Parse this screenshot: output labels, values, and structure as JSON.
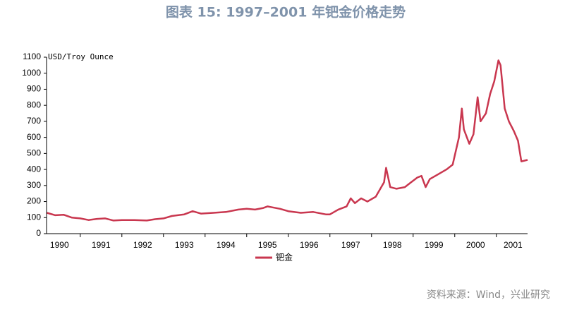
{
  "chart_data": {
    "type": "line",
    "title": "图表 15: 1997–2001 年钯金价格走势",
    "y_label": "USD/Troy Ounce",
    "source": "资料来源：Wind，兴业研究",
    "xlim": [
      1990.19,
      2001.75
    ],
    "ylim": [
      0,
      1100
    ],
    "yticks": [
      0,
      100,
      200,
      300,
      400,
      500,
      600,
      700,
      800,
      900,
      1000,
      1100
    ],
    "xticks": [
      {
        "value": 1990.5,
        "label": "1990"
      },
      {
        "value": 1991.5,
        "label": "1991"
      },
      {
        "value": 1992.5,
        "label": "1992"
      },
      {
        "value": 1993.5,
        "label": "1993"
      },
      {
        "value": 1994.5,
        "label": "1994"
      },
      {
        "value": 1995.5,
        "label": "1995"
      },
      {
        "value": 1996.5,
        "label": "1996"
      },
      {
        "value": 1997.5,
        "label": "1997"
      },
      {
        "value": 1998.5,
        "label": "1998"
      },
      {
        "value": 1999.5,
        "label": "1999"
      },
      {
        "value": 2000.5,
        "label": "2000"
      },
      {
        "value": 2001.4,
        "label": "2001"
      }
    ],
    "xtick_marks": [
      1991,
      1992,
      1993,
      1994,
      1995,
      1996,
      1997,
      1998,
      1999,
      2000,
      2001
    ],
    "series": [
      {
        "name": "钯金",
        "color": "#c9374f",
        "x": [
          1990.2,
          1990.4,
          1990.6,
          1990.8,
          1991.0,
          1991.2,
          1991.4,
          1991.6,
          1991.8,
          1992.0,
          1992.3,
          1992.6,
          1992.8,
          1993.0,
          1993.2,
          1993.5,
          1993.7,
          1993.9,
          1994.2,
          1994.5,
          1994.8,
          1995.0,
          1995.2,
          1995.4,
          1995.5,
          1995.8,
          1996.0,
          1996.3,
          1996.6,
          1996.9,
          1997.0,
          1997.2,
          1997.4,
          1997.5,
          1997.6,
          1997.75,
          1997.9,
          1998.1,
          1998.3,
          1998.35,
          1998.45,
          1998.6,
          1998.8,
          1998.95,
          1999.1,
          1999.2,
          1999.3,
          1999.4,
          1999.6,
          1999.8,
          1999.95,
          2000.1,
          2000.17,
          2000.22,
          2000.35,
          2000.45,
          2000.55,
          2000.62,
          2000.75,
          2000.85,
          2000.95,
          2001.05,
          2001.1,
          2001.2,
          2001.3,
          2001.42,
          2001.52,
          2001.6,
          2001.75
        ],
        "values": [
          130,
          115,
          118,
          100,
          95,
          85,
          92,
          95,
          82,
          85,
          85,
          82,
          90,
          95,
          110,
          120,
          140,
          125,
          130,
          135,
          150,
          155,
          150,
          160,
          170,
          155,
          140,
          130,
          135,
          120,
          120,
          150,
          170,
          220,
          190,
          220,
          200,
          230,
          320,
          410,
          290,
          280,
          290,
          320,
          350,
          360,
          290,
          340,
          370,
          400,
          430,
          600,
          780,
          650,
          560,
          620,
          850,
          700,
          750,
          870,
          950,
          1080,
          1050,
          780,
          700,
          640,
          580,
          450,
          460
        ]
      }
    ]
  }
}
